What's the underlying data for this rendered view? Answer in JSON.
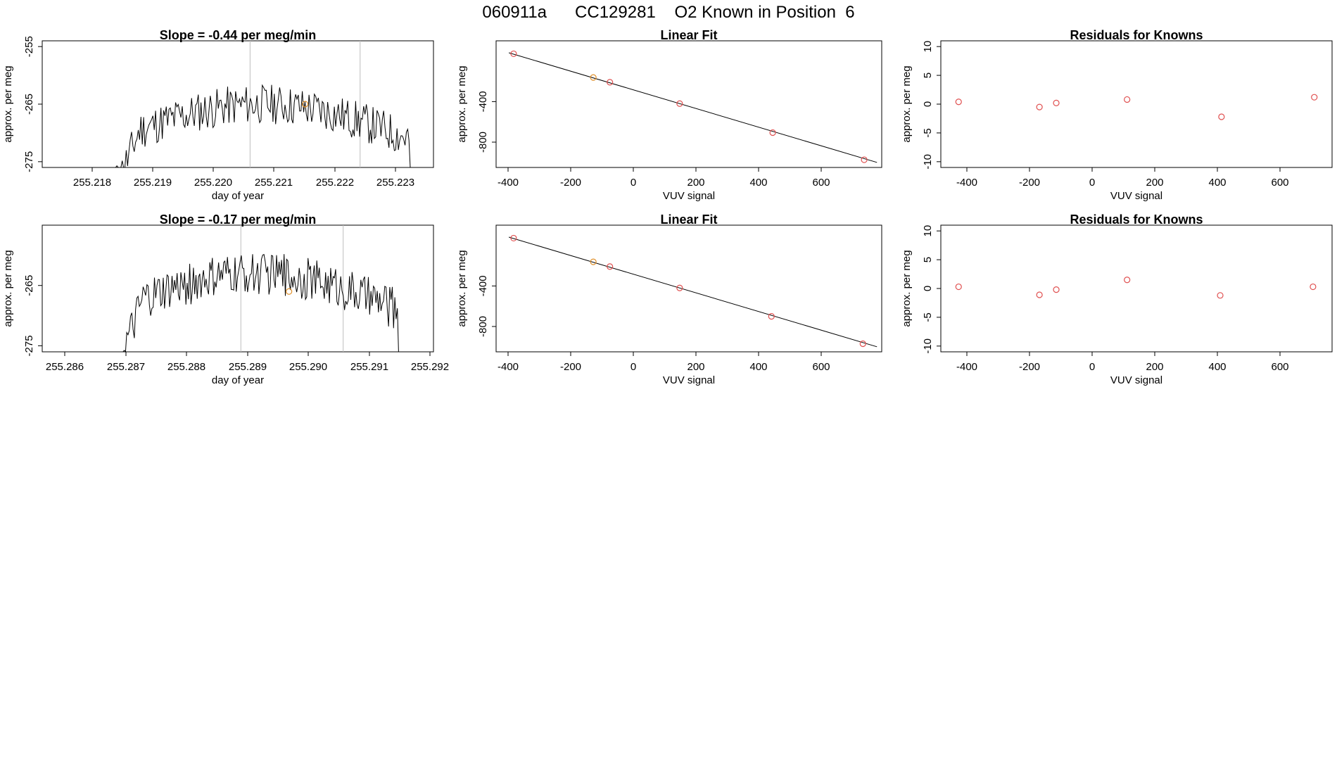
{
  "page": {
    "title": "060911a      CC129281    O2 Known in Position  6"
  },
  "colors": {
    "axis": "#000000",
    "line": "#000000",
    "marker_red": "#e05050",
    "marker_orange": "#e0902a",
    "vline": "#bdbdbd"
  },
  "chart_data": [
    {
      "type": "line",
      "title": "Slope =  -0.44  per meg/min",
      "xlabel": "day of year",
      "ylabel": "approx. per meg",
      "xlim": [
        255.2171,
        255.2235
      ],
      "ylim": [
        -276,
        -254
      ],
      "xticks": [
        "255.218",
        "255.219",
        "255.220",
        "255.221",
        "255.222",
        "255.223"
      ],
      "yticks": [
        "-255",
        "-265",
        "-275"
      ],
      "vlines": [
        255.2205,
        255.2223
      ],
      "series_start": 255.2183,
      "series_end": 255.2231,
      "series_base": -270,
      "highlight": {
        "x": 255.2214,
        "y": -265
      }
    },
    {
      "type": "scatter",
      "title": "Linear Fit",
      "xlabel": "VUV signal",
      "ylabel": "approx. per meg",
      "xlim": [
        -480,
        730
      ],
      "ylim": [
        -1050,
        200
      ],
      "xticks": [
        "-400",
        "-200",
        "0",
        "200",
        "400",
        "600"
      ],
      "yticks": [
        "-400",
        "-800"
      ],
      "fit": {
        "x0": -440,
        "y0": 82,
        "x1": 715,
        "y1": -1000
      },
      "x": [
        -425,
        -175,
        -123,
        96,
        388,
        675
      ],
      "y": [
        72,
        -162,
        -209,
        -420,
        -706,
        -974
      ],
      "point_colors": [
        "red",
        "orange",
        "red",
        "red",
        "red",
        "red"
      ]
    },
    {
      "type": "scatter",
      "title": "Residuals for Knowns",
      "xlabel": "VUV signal",
      "ylabel": "approx. per meg",
      "xlim": [
        -480,
        730
      ],
      "ylim": [
        -11,
        11
      ],
      "xticks": [
        "-400",
        "-200",
        "0",
        "200",
        "400",
        "600"
      ],
      "yticks": [
        "10",
        "5",
        "0",
        "-5",
        "-10"
      ],
      "x": [
        -425,
        -175,
        -123,
        96,
        388,
        675
      ],
      "y": [
        0.4,
        -0.5,
        0.2,
        0.8,
        -2.2,
        1.2
      ]
    },
    {
      "type": "line",
      "title": "Slope =  -0.17  per meg/min",
      "xlabel": "day of year",
      "ylabel": "approx. per meg",
      "xlim": [
        255.2857,
        255.2922
      ],
      "ylim": [
        -276,
        -255
      ],
      "xticks": [
        "255.286",
        "255.287",
        "255.288",
        "255.289",
        "255.290",
        "255.291",
        "255.292"
      ],
      "yticks": [
        "-265",
        "-275"
      ],
      "vlines": [
        255.289,
        255.2907
      ],
      "series_start": 255.287,
      "series_end": 255.2916,
      "series_base": -268,
      "highlight": {
        "x": 255.2898,
        "y": -266
      }
    },
    {
      "type": "scatter",
      "title": "Linear Fit",
      "xlabel": "VUV signal",
      "ylabel": "approx. per meg",
      "xlim": [
        -480,
        730
      ],
      "ylim": [
        -1050,
        200
      ],
      "xticks": [
        "-400",
        "-200",
        "0",
        "200",
        "400",
        "600"
      ],
      "yticks": [
        "-400",
        "-800"
      ],
      "fit": {
        "x0": -440,
        "y0": 82,
        "x1": 715,
        "y1": -1000
      },
      "x": [
        -425,
        -175,
        -123,
        96,
        384,
        671
      ],
      "y": [
        72,
        -162,
        -209,
        -420,
        -700,
        -970
      ],
      "point_colors": [
        "red",
        "orange",
        "red",
        "red",
        "red",
        "red"
      ]
    },
    {
      "type": "scatter",
      "title": "Residuals for Knowns",
      "xlabel": "VUV signal",
      "ylabel": "approx. per meg",
      "xlim": [
        -480,
        730
      ],
      "ylim": [
        -11,
        11
      ],
      "xticks": [
        "-400",
        "-200",
        "0",
        "200",
        "400",
        "600"
      ],
      "yticks": [
        "10",
        "5",
        "0",
        "-5",
        "-10"
      ],
      "x": [
        -425,
        -175,
        -123,
        96,
        384,
        671
      ],
      "y": [
        0.3,
        -1.1,
        -0.2,
        1.5,
        -1.2,
        0.3
      ]
    }
  ]
}
